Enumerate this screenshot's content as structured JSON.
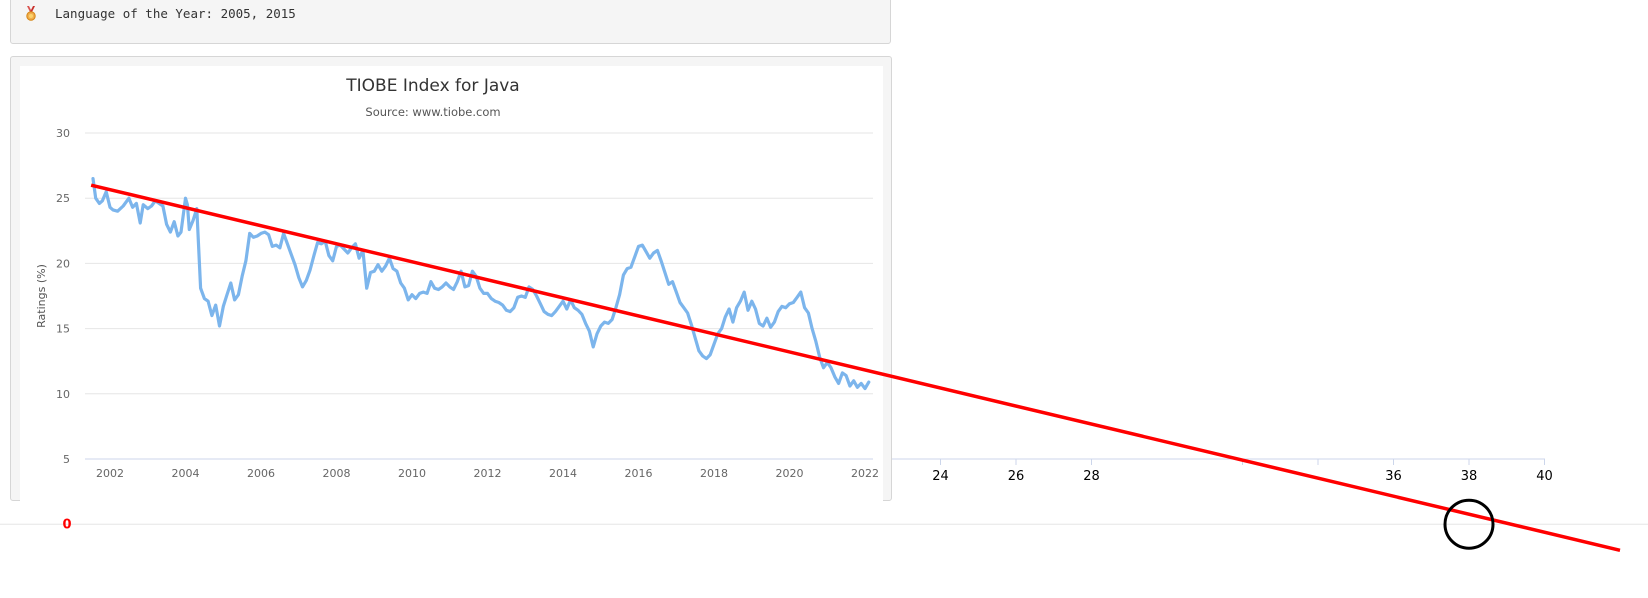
{
  "header": {
    "award_text": "Language of the Year: 2005, 2015",
    "award_icon": "medal-icon"
  },
  "chart_data": {
    "type": "line",
    "title": "TIOBE Index for Java",
    "subtitle": "Source: www.tiobe.com",
    "ylabel": "Ratings (%)",
    "xlabel": "",
    "ylim": [
      5,
      30
    ],
    "xlim": [
      2001.4,
      2022.3
    ],
    "yticks": [
      "5",
      "10",
      "15",
      "20",
      "25",
      "30"
    ],
    "xticks": [
      "2002",
      "2004",
      "2006",
      "2008",
      "2010",
      "2012",
      "2014",
      "2016",
      "2018",
      "2020",
      "2022"
    ],
    "grid": true,
    "series": [
      {
        "color": "#7cb5ec",
        "x": [
          2001.55,
          2001.62,
          2001.72,
          2001.8,
          2001.9,
          2002.0,
          2002.08,
          2002.2,
          2002.35,
          2002.5,
          2002.6,
          2002.7,
          2002.8,
          2002.88,
          2003.0,
          2003.1,
          2003.2,
          2003.3,
          2003.4,
          2003.5,
          2003.6,
          2003.7,
          2003.8,
          2003.88,
          2004.0,
          2004.05,
          2004.1,
          2004.2,
          2004.3,
          2004.4,
          2004.5,
          2004.6,
          2004.7,
          2004.8,
          2004.9,
          2005.0,
          2005.1,
          2005.2,
          2005.3,
          2005.4,
          2005.5,
          2005.6,
          2005.7,
          2005.8,
          2005.9,
          2006.0,
          2006.1,
          2006.2,
          2006.3,
          2006.4,
          2006.5,
          2006.6,
          2006.7,
          2006.8,
          2006.9,
          2007.0,
          2007.1,
          2007.2,
          2007.3,
          2007.4,
          2007.5,
          2007.6,
          2007.7,
          2007.8,
          2007.9,
          2008.0,
          2008.1,
          2008.2,
          2008.3,
          2008.4,
          2008.5,
          2008.6,
          2008.7,
          2008.8,
          2008.9,
          2009.0,
          2009.1,
          2009.2,
          2009.3,
          2009.4,
          2009.5,
          2009.6,
          2009.7,
          2009.8,
          2009.9,
          2010.0,
          2010.1,
          2010.2,
          2010.3,
          2010.4,
          2010.5,
          2010.6,
          2010.7,
          2010.8,
          2010.9,
          2011.0,
          2011.1,
          2011.2,
          2011.3,
          2011.4,
          2011.5,
          2011.6,
          2011.7,
          2011.8,
          2011.9,
          2012.0,
          2012.1,
          2012.2,
          2012.3,
          2012.4,
          2012.5,
          2012.6,
          2012.7,
          2012.8,
          2012.9,
          2013.0,
          2013.1,
          2013.2,
          2013.3,
          2013.4,
          2013.5,
          2013.6,
          2013.7,
          2013.8,
          2013.9,
          2014.0,
          2014.1,
          2014.2,
          2014.3,
          2014.4,
          2014.5,
          2014.6,
          2014.7,
          2014.8,
          2014.9,
          2015.0,
          2015.1,
          2015.2,
          2015.3,
          2015.4,
          2015.5,
          2015.6,
          2015.7,
          2015.8,
          2015.9,
          2016.0,
          2016.1,
          2016.2,
          2016.3,
          2016.4,
          2016.5,
          2016.6,
          2016.7,
          2016.8,
          2016.9,
          2017.0,
          2017.1,
          2017.2,
          2017.3,
          2017.4,
          2017.5,
          2017.6,
          2017.7,
          2017.8,
          2017.9,
          2018.0,
          2018.1,
          2018.2,
          2018.3,
          2018.4,
          2018.5,
          2018.6,
          2018.7,
          2018.8,
          2018.9,
          2019.0,
          2019.1,
          2019.2,
          2019.3,
          2019.4,
          2019.5,
          2019.6,
          2019.7,
          2019.8,
          2019.9,
          2020.0,
          2020.1,
          2020.2,
          2020.3,
          2020.4,
          2020.5,
          2020.6,
          2020.7,
          2020.8,
          2020.9,
          2021.0,
          2021.1,
          2021.2,
          2021.3,
          2021.4,
          2021.5,
          2021.6,
          2021.7,
          2021.8,
          2021.9,
          2022.0,
          2022.1
        ],
        "values": [
          26.5,
          25.0,
          24.6,
          24.8,
          25.5,
          24.3,
          24.1,
          24.0,
          24.4,
          25.0,
          24.3,
          24.6,
          23.1,
          24.5,
          24.2,
          24.4,
          24.8,
          24.6,
          24.4,
          23.0,
          22.4,
          23.2,
          22.1,
          22.4,
          25.0,
          24.5,
          22.6,
          23.3,
          24.2,
          18.1,
          17.3,
          17.1,
          16.0,
          16.8,
          15.2,
          16.7,
          17.6,
          18.5,
          17.2,
          17.6,
          19.0,
          20.2,
          22.3,
          22.0,
          22.1,
          22.3,
          22.4,
          22.2,
          21.3,
          21.4,
          21.2,
          22.3,
          21.5,
          20.7,
          19.9,
          18.9,
          18.2,
          18.7,
          19.5,
          20.6,
          21.6,
          21.5,
          21.7,
          20.6,
          20.2,
          21.3,
          21.4,
          21.1,
          20.8,
          21.2,
          21.5,
          20.4,
          21.0,
          18.1,
          19.3,
          19.4,
          19.9,
          19.4,
          19.8,
          20.4,
          19.6,
          19.4,
          18.5,
          18.1,
          17.2,
          17.6,
          17.3,
          17.7,
          17.8,
          17.7,
          18.6,
          18.1,
          18.0,
          18.2,
          18.5,
          18.2,
          18.0,
          18.6,
          19.4,
          18.2,
          18.3,
          19.4,
          19.0,
          18.1,
          17.7,
          17.7,
          17.3,
          17.1,
          17.0,
          16.8,
          16.4,
          16.3,
          16.6,
          17.4,
          17.5,
          17.4,
          18.2,
          18.0,
          17.5,
          16.9,
          16.3,
          16.1,
          16.0,
          16.3,
          16.7,
          17.1,
          16.5,
          17.2,
          16.6,
          16.4,
          16.1,
          15.4,
          14.8,
          13.6,
          14.6,
          15.2,
          15.5,
          15.4,
          15.7,
          16.6,
          17.6,
          19.1,
          19.6,
          19.7,
          20.5,
          21.3,
          21.4,
          20.9,
          20.4,
          20.8,
          21.0,
          20.2,
          19.3,
          18.4,
          18.6,
          17.8,
          17.0,
          16.6,
          16.2,
          15.3,
          14.3,
          13.3,
          12.9,
          12.7,
          13.0,
          13.8,
          14.6,
          15.0,
          15.9,
          16.5,
          15.5,
          16.6,
          17.1,
          17.8,
          16.4,
          17.1,
          16.5,
          15.4,
          15.2,
          15.8,
          15.1,
          15.5,
          16.3,
          16.7,
          16.6,
          16.9,
          17.0,
          17.4,
          17.8,
          16.6,
          16.2,
          15.0,
          14.0,
          12.8,
          12.0,
          12.4,
          12.0,
          11.3,
          10.8,
          11.6,
          11.4,
          10.6,
          11.0,
          10.5,
          10.8,
          10.4,
          10.9
        ]
      }
    ]
  },
  "overlay": {
    "extended_xticks": [
      "24",
      "26",
      "28",
      "36",
      "38",
      "40"
    ],
    "zero_label": "0",
    "trend_color": "#ff0000",
    "trend_line": {
      "x": [
        2001.5,
        2042.0
      ],
      "values": [
        26.0,
        -2.0
      ]
    },
    "circle_at": {
      "x": 2038,
      "value": 0
    }
  }
}
